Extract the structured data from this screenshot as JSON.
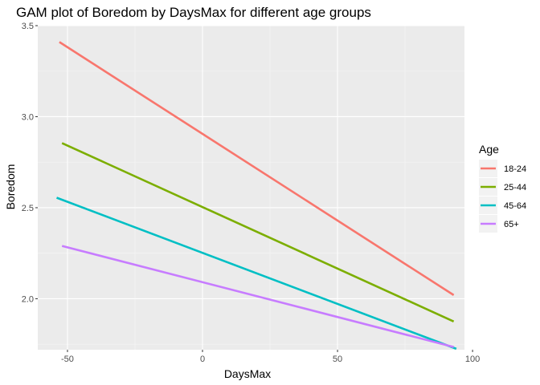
{
  "chart_data": {
    "type": "line",
    "title": "GAM plot of Boredom by DaysMax for different age groups",
    "xlabel": "DaysMax",
    "ylabel": "Boredom",
    "xlim": [
      -61,
      97
    ],
    "ylim": [
      1.72,
      3.5
    ],
    "xticks": [
      -50,
      0,
      50,
      100
    ],
    "xtick_labels": [
      "-50",
      "0",
      "50",
      "100"
    ],
    "yticks": [
      2.0,
      2.5,
      3.0,
      3.5
    ],
    "ytick_labels": [
      "2.0",
      "2.5",
      "3.0",
      "3.5"
    ],
    "grid": true,
    "legend": {
      "title": "Age",
      "position": "right"
    },
    "series": [
      {
        "name": "18-24",
        "color": "#F8766D",
        "x": [
          -53,
          93
        ],
        "y": [
          3.41,
          2.02
        ]
      },
      {
        "name": "25-44",
        "color": "#7CAE00",
        "x": [
          -52,
          93
        ],
        "y": [
          2.855,
          1.875
        ]
      },
      {
        "name": "45-64",
        "color": "#00BFC4",
        "x": [
          -54,
          94
        ],
        "y": [
          2.555,
          1.725
        ]
      },
      {
        "name": "65+",
        "color": "#C77CFF",
        "x": [
          -52,
          93
        ],
        "y": [
          2.29,
          1.735
        ]
      }
    ]
  }
}
